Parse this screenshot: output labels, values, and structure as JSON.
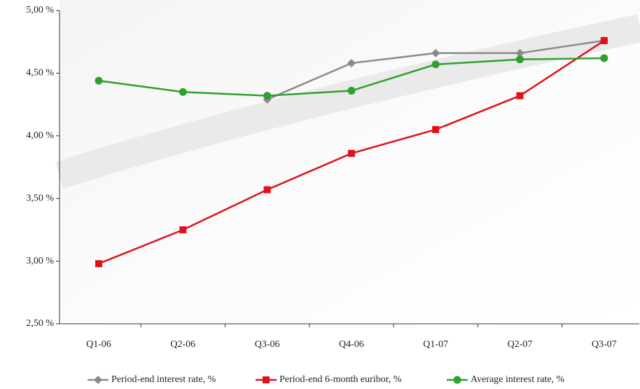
{
  "chart_data": {
    "type": "line",
    "categories": [
      "Q1-06",
      "Q2-06",
      "Q3-06",
      "Q4-06",
      "Q1-07",
      "Q2-07",
      "Q3-07"
    ],
    "series": [
      {
        "name": "Period-end interest rate, %",
        "color": "#8a8a8a",
        "marker": "diamond",
        "values": [
          null,
          null,
          4.29,
          4.58,
          4.66,
          4.66,
          4.76
        ]
      },
      {
        "name": "Period-end 6-month euribor, %",
        "color": "#e0101a",
        "marker": "square",
        "values": [
          2.98,
          3.25,
          3.57,
          3.86,
          4.05,
          4.32,
          4.76
        ]
      },
      {
        "name": "Average interest rate, %",
        "color": "#2ea02e",
        "marker": "circle",
        "values": [
          4.44,
          4.35,
          4.32,
          4.36,
          4.57,
          4.61,
          4.62
        ]
      }
    ],
    "ylim": [
      2.5,
      5.0
    ],
    "yticks": [
      {
        "value": 2.5,
        "label": "2,50 %"
      },
      {
        "value": 3.0,
        "label": "3,00 %"
      },
      {
        "value": 3.5,
        "label": "3,50 %"
      },
      {
        "value": 4.0,
        "label": "4,00 %"
      },
      {
        "value": 4.5,
        "label": "4,50 %"
      },
      {
        "value": 5.0,
        "label": "5,00 %"
      }
    ],
    "legend": "bottom"
  }
}
